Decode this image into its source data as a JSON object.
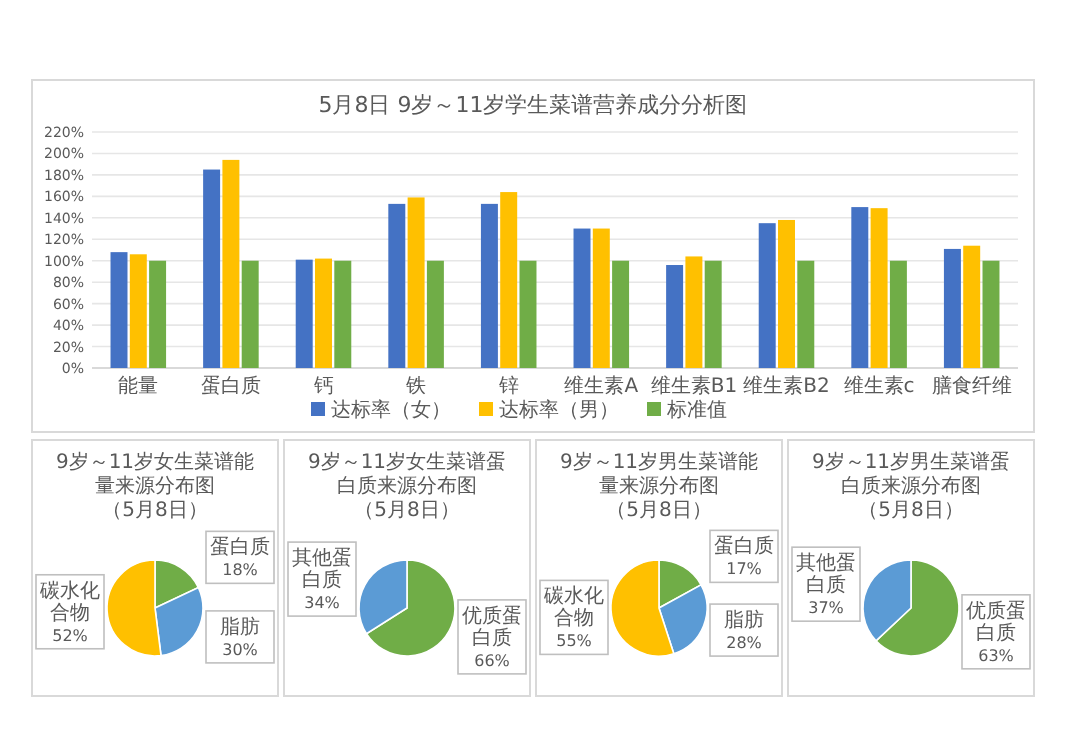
{
  "chart_data": [
    {
      "type": "bar",
      "title": "5月8日 9岁～11岁学生菜谱营养成分分析图",
      "categories": [
        "能量",
        "蛋白质",
        "钙",
        "铁",
        "锌",
        "维生素A",
        "维生素B1",
        "维生素B2",
        "维生素c",
        "膳食纤维"
      ],
      "series": [
        {
          "name": "达标率（女）",
          "color": "#4472c4",
          "values": [
            108,
            185,
            101,
            153,
            153,
            130,
            96,
            135,
            150,
            111
          ]
        },
        {
          "name": "达标率（男）",
          "color": "#ffc000",
          "values": [
            106,
            194,
            102,
            159,
            164,
            130,
            104,
            138,
            149,
            114
          ]
        },
        {
          "name": "标准值",
          "color": "#70ad47",
          "values": [
            100,
            100,
            100,
            100,
            100,
            100,
            100,
            100,
            100,
            100
          ]
        }
      ],
      "ylim": [
        0,
        220
      ],
      "yticks": [
        {
          "value": 0,
          "label": "0%"
        },
        {
          "value": 20,
          "label": "20%"
        },
        {
          "value": 40,
          "label": "40%"
        },
        {
          "value": 60,
          "label": "60%"
        },
        {
          "value": 80,
          "label": "80%"
        },
        {
          "value": 100,
          "label": "100%"
        },
        {
          "value": 120,
          "label": "120%"
        },
        {
          "value": 140,
          "label": "140%"
        },
        {
          "value": 160,
          "label": "160%"
        },
        {
          "value": 180,
          "label": "180%"
        },
        {
          "value": 200,
          "label": "200%"
        },
        {
          "value": 220,
          "label": "220%"
        }
      ],
      "grid": "y",
      "legend": "bottom"
    },
    {
      "type": "pie",
      "title": "9岁～11岁女生菜谱能量来源分布图",
      "subtitle": "（5月8日）",
      "categories": [
        "蛋白质",
        "脂肪",
        "碳水化合物"
      ],
      "values": [
        18,
        30,
        52
      ],
      "colors": [
        "#70ad47",
        "#5b9bd5",
        "#ffc000"
      ],
      "value_labels": [
        "18%",
        "30%",
        "52%"
      ]
    },
    {
      "type": "pie",
      "title": "9岁～11岁女生菜谱蛋白质来源分布图",
      "subtitle": "（5月8日）",
      "categories": [
        "优质蛋白质",
        "其他蛋白质"
      ],
      "values": [
        66,
        34
      ],
      "colors": [
        "#70ad47",
        "#5b9bd5"
      ],
      "value_labels": [
        "66%",
        "34%"
      ]
    },
    {
      "type": "pie",
      "title": "9岁～11岁男生菜谱能量来源分布图",
      "subtitle": "（5月8日）",
      "categories": [
        "蛋白质",
        "脂肪",
        "碳水化合物"
      ],
      "values": [
        17,
        28,
        55
      ],
      "colors": [
        "#70ad47",
        "#5b9bd5",
        "#ffc000"
      ],
      "value_labels": [
        "17%",
        "28%",
        "55%"
      ]
    },
    {
      "type": "pie",
      "title": "9岁～11岁男生菜谱蛋白质来源分布图",
      "subtitle": "（5月8日）",
      "categories": [
        "优质蛋白质",
        "其他蛋白质"
      ],
      "values": [
        63,
        37
      ],
      "colors": [
        "#70ad47",
        "#5b9bd5"
      ],
      "value_labels": [
        "63%",
        "37%"
      ]
    }
  ]
}
